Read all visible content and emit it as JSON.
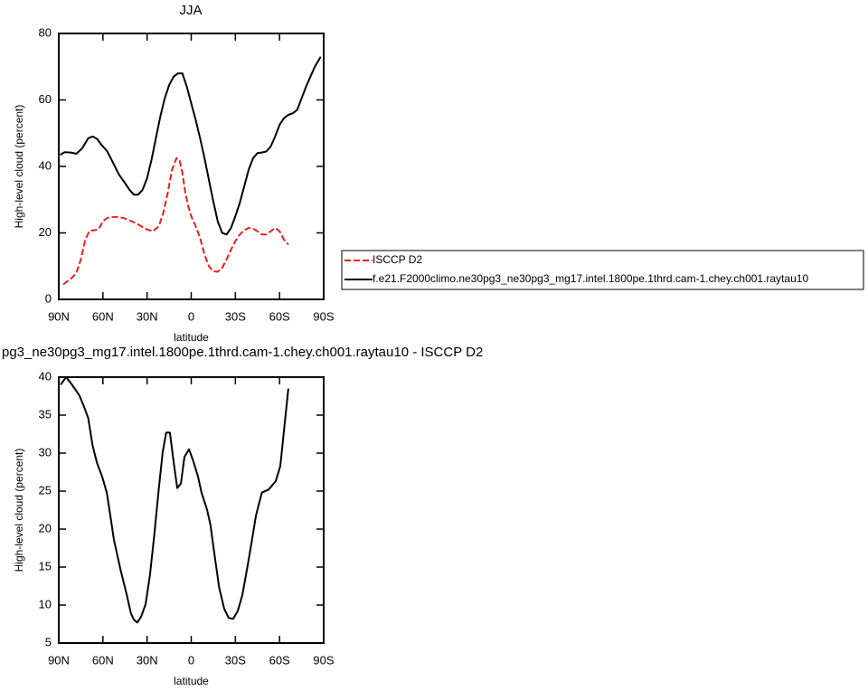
{
  "chart_data": [
    {
      "type": "line",
      "title": "JJA",
      "x_label": "latitude",
      "y_label": "High-level cloud (percent)",
      "xlim": [
        90,
        -90
      ],
      "xticks": [
        {
          "value": 90,
          "label": "90N"
        },
        {
          "value": 60,
          "label": "60N"
        },
        {
          "value": 30,
          "label": "30N"
        },
        0,
        {
          "value": -30,
          "label": "30S"
        },
        {
          "value": -60,
          "label": "60S"
        },
        {
          "value": -90,
          "label": "90S"
        }
      ],
      "ylim": [
        0,
        80
      ],
      "yticks": [
        0,
        20,
        40,
        60,
        80
      ],
      "legend": "right",
      "series": [
        {
          "name": "ISCCP D2",
          "color": "#e8201c",
          "dashed": true,
          "x": [
            87,
            84,
            81,
            78,
            75,
            72,
            69,
            66,
            63,
            60,
            57,
            54,
            50,
            46,
            42,
            38,
            34,
            30,
            26,
            22,
            19,
            16,
            13,
            10,
            8,
            6,
            4,
            2,
            0,
            -3,
            -6,
            -9,
            -12,
            -15,
            -18,
            -21,
            -24,
            -27,
            -30,
            -33,
            -36,
            -39,
            -42,
            -45,
            -48,
            -51,
            -54,
            -57,
            -60,
            -63,
            -66
          ],
          "values": [
            4.5,
            5.5,
            6.5,
            8,
            12,
            18,
            20.7,
            20.8,
            21,
            23.5,
            24.5,
            24.8,
            24.8,
            24.5,
            23.8,
            23,
            22,
            21,
            20.5,
            22,
            26,
            32,
            39,
            42.5,
            42,
            38,
            32,
            28,
            25,
            22,
            18.5,
            13.5,
            10,
            8.5,
            8.3,
            9.5,
            12,
            15,
            17.5,
            19.5,
            20.8,
            21.5,
            21.3,
            20.5,
            19.5,
            19.5,
            20.5,
            21.5,
            20.5,
            18,
            16.5
          ]
        },
        {
          "name": "f.e21.F2000climo.ne30pg3_ne30pg3_mg17.intel.1800pe.1thrd.cam-1.chey.ch001.raytau10",
          "color": "#000000",
          "dashed": false,
          "x": [
            89,
            86,
            82,
            78,
            74,
            70,
            67,
            64,
            61,
            57,
            53,
            49,
            45,
            42,
            39,
            36,
            33,
            30,
            27,
            24,
            21,
            18,
            15,
            12,
            9,
            6,
            3,
            0,
            -3,
            -6,
            -9,
            -12,
            -15,
            -18,
            -21,
            -24,
            -27,
            -30,
            -33,
            -36,
            -39,
            -42,
            -45,
            -48,
            -51,
            -54,
            -57,
            -60,
            -63,
            -66,
            -69,
            -72,
            -75,
            -78,
            -81,
            -84,
            -88
          ],
          "values": [
            43.5,
            44.3,
            44.2,
            43.8,
            45.5,
            48.5,
            49,
            48.3,
            46.5,
            44.5,
            41,
            37.5,
            35,
            33,
            31.5,
            31.5,
            33,
            36.5,
            42,
            48.5,
            55,
            60.5,
            64.5,
            67,
            68,
            68,
            64,
            59,
            54,
            48.5,
            42.5,
            36,
            29.5,
            23.5,
            20,
            19.5,
            21.5,
            25,
            29,
            34,
            39,
            42.5,
            44,
            44.2,
            44.5,
            46,
            49,
            52.5,
            54.5,
            55.5,
            56,
            57,
            60.5,
            64,
            67,
            70,
            73
          ]
        }
      ]
    },
    {
      "type": "line",
      "title": "pg3_ne30pg3_mg17.intel.1800pe.1thrd.cam-1.chey.ch001.raytau10 - ISCCP D2",
      "x_label": "latitude",
      "y_label": "High-level cloud (percent)",
      "xlim": [
        90,
        -90
      ],
      "xticks": [
        {
          "value": 90,
          "label": "90N"
        },
        {
          "value": 60,
          "label": "60N"
        },
        {
          "value": 30,
          "label": "30N"
        },
        0,
        {
          "value": -30,
          "label": "30S"
        },
        {
          "value": -60,
          "label": "60S"
        },
        {
          "value": -90,
          "label": "90S"
        }
      ],
      "ylim": [
        5,
        40
      ],
      "yticks": [
        5,
        10,
        15,
        20,
        25,
        30,
        35,
        40
      ],
      "series": [
        {
          "color": "#000000",
          "dashed": false,
          "x": [
            88.8,
            85,
            81,
            76,
            73.4,
            70,
            67,
            64,
            60.5,
            57.4,
            55,
            52.5,
            48,
            44,
            41,
            39,
            36.6,
            34,
            31,
            28,
            25,
            22,
            19.4,
            17,
            14.5,
            12,
            9.5,
            7,
            4.6,
            1.5,
            -1.5,
            -4.6,
            -7,
            -10.7,
            -13,
            -16,
            -19,
            -22.4,
            -25.5,
            -28.5,
            -31.6,
            -34.7,
            -37.8,
            -41,
            -44,
            -48,
            -52.5,
            -57.4,
            -60.5,
            -63.5,
            -66
          ],
          "values": [
            39,
            40,
            39,
            37.6,
            36.4,
            34.6,
            31,
            28.7,
            26.9,
            24.8,
            21.8,
            18.6,
            14.6,
            11.5,
            8.9,
            8.1,
            7.7,
            8.5,
            10.1,
            14,
            19.4,
            25.4,
            30.1,
            32.7,
            32.7,
            28.9,
            25.4,
            26,
            29.5,
            30.5,
            28.9,
            26.9,
            24.8,
            22.6,
            20.6,
            16.4,
            12.3,
            9.5,
            8.3,
            8.2,
            9.2,
            11.3,
            14.6,
            18.2,
            21.8,
            24.8,
            25.2,
            26.3,
            28.3,
            33.9,
            38.5
          ]
        }
      ]
    }
  ]
}
